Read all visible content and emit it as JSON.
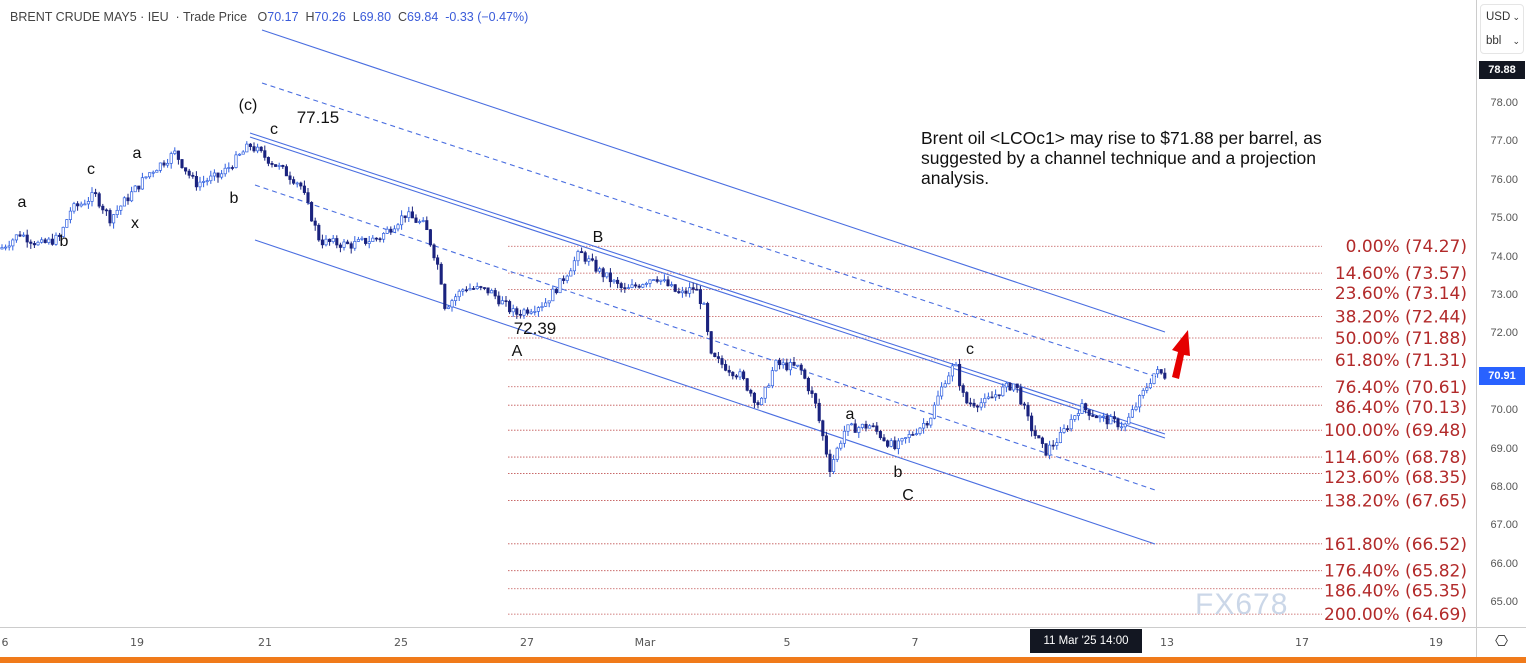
{
  "header": {
    "symbol": "BRENT CRUDE MAY5",
    "exchange": "IEU",
    "price_type": "Trade Price",
    "open_label": "O",
    "open": "70.17",
    "high_label": "H",
    "high": "70.26",
    "low_label": "L",
    "low": "69.80",
    "close_label": "C",
    "close": "69.84",
    "change": "-0.33 (−0.47%)"
  },
  "price_axis": {
    "currency": "USD",
    "unit": "bbl",
    "high_tag": "78.88",
    "last_tag": "70.91",
    "last_color": "#2962ff",
    "ticks": [
      "78.00",
      "77.00",
      "76.00",
      "75.00",
      "74.00",
      "73.00",
      "72.00",
      "70.00",
      "69.00",
      "68.00",
      "67.00",
      "66.00",
      "65.00"
    ]
  },
  "time_axis": {
    "ticks": [
      "6",
      "19",
      "21",
      "25",
      "27",
      "Mar",
      "5",
      "7",
      "13",
      "17",
      "19"
    ],
    "cursor_label": "11 Mar '25  14:00"
  },
  "annotation": "Brent oil <LCOc1> may rise to $71.88 per barrel, as suggested by a channel technique and a projection analysis.",
  "watermark": "FX678",
  "chart_data": {
    "type": "candlestick",
    "title": "",
    "ylim": [
      64.4,
      79.2
    ],
    "price_path": [
      [
        0,
        74.2
      ],
      [
        20,
        74.6
      ],
      [
        40,
        74.3
      ],
      [
        60,
        74.5
      ],
      [
        70,
        75.2
      ],
      [
        95,
        75.6
      ],
      [
        110,
        75.0
      ],
      [
        130,
        75.6
      ],
      [
        150,
        76.2
      ],
      [
        175,
        76.7
      ],
      [
        195,
        75.9
      ],
      [
        220,
        76.1
      ],
      [
        250,
        76.9
      ],
      [
        270,
        76.5
      ],
      [
        300,
        75.9
      ],
      [
        320,
        74.4
      ],
      [
        350,
        74.3
      ],
      [
        380,
        74.5
      ],
      [
        405,
        75.1
      ],
      [
        425,
        74.8
      ],
      [
        440,
        73.6
      ],
      [
        445,
        72.7
      ],
      [
        465,
        73.2
      ],
      [
        490,
        73.1
      ],
      [
        515,
        72.5
      ],
      [
        545,
        72.8
      ],
      [
        560,
        73.3
      ],
      [
        580,
        74.1
      ],
      [
        600,
        73.6
      ],
      [
        625,
        73.1
      ],
      [
        655,
        73.5
      ],
      [
        680,
        73.0
      ],
      [
        695,
        73.2
      ],
      [
        705,
        72.6
      ],
      [
        710,
        71.4
      ],
      [
        740,
        70.9
      ],
      [
        760,
        70.1
      ],
      [
        775,
        71.2
      ],
      [
        800,
        71.1
      ],
      [
        815,
        70.2
      ],
      [
        830,
        68.5
      ],
      [
        845,
        69.5
      ],
      [
        870,
        69.6
      ],
      [
        895,
        69.0
      ],
      [
        930,
        69.8
      ],
      [
        945,
        70.8
      ],
      [
        955,
        71.2
      ],
      [
        965,
        70.2
      ],
      [
        985,
        70.2
      ],
      [
        1000,
        70.5
      ],
      [
        1015,
        70.7
      ],
      [
        1030,
        69.6
      ],
      [
        1045,
        68.9
      ],
      [
        1060,
        69.3
      ],
      [
        1080,
        70.1
      ],
      [
        1100,
        69.8
      ],
      [
        1125,
        69.6
      ],
      [
        1140,
        70.3
      ],
      [
        1155,
        71.0
      ],
      [
        1165,
        70.91
      ]
    ],
    "fibonacci": [
      {
        "label": "0.00% (74.27)",
        "price": 74.27
      },
      {
        "label": "14.60% (73.57)",
        "price": 73.57
      },
      {
        "label": "23.60% (73.14)",
        "price": 73.14
      },
      {
        "label": "38.20% (72.44)",
        "price": 72.44
      },
      {
        "label": "50.00% (71.88)",
        "price": 71.88
      },
      {
        "label": "61.80% (71.31)",
        "price": 71.31
      },
      {
        "label": "76.40% (70.61)",
        "price": 70.61
      },
      {
        "label": "86.40% (70.13)",
        "price": 70.13
      },
      {
        "label": "100.00% (69.48)",
        "price": 69.48
      },
      {
        "label": "114.60% (68.78)",
        "price": 68.78
      },
      {
        "label": "123.60% (68.35)",
        "price": 68.35
      },
      {
        "label": "138.20% (67.65)",
        "price": 67.65
      },
      {
        "label": "161.80% (66.52)",
        "price": 66.52
      },
      {
        "label": "176.40% (65.82)",
        "price": 65.82
      },
      {
        "label": "186.40% (65.35)",
        "price": 65.35
      },
      {
        "label": "200.00% (64.69)",
        "price": 64.69
      }
    ],
    "fib_color": "#b22a2a",
    "channel_color": "#4a6ee0",
    "wave_labels": [
      "a",
      "b",
      "c",
      "x",
      "a",
      "b",
      "(c)",
      "c",
      "77.15",
      "72.39",
      "A",
      "B",
      "a",
      "b",
      "C",
      "c"
    ],
    "arrow_color": "#e50000"
  }
}
